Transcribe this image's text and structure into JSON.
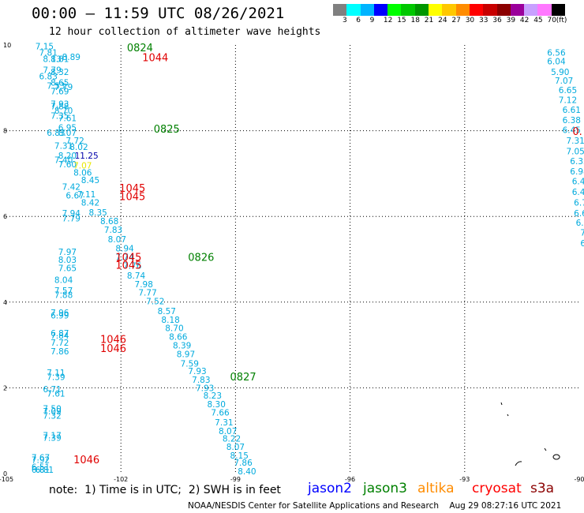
{
  "header": {
    "title": "00:00 – 11:59 UTC 08/26/2021",
    "subtitle": "12 hour collection of altimeter wave heights"
  },
  "legend": {
    "colors": [
      "#808080",
      "#00ffff",
      "#00b4ff",
      "#0000ff",
      "#00ff00",
      "#00c800",
      "#009600",
      "#ffff00",
      "#ffc800",
      "#ff8c00",
      "#ff0000",
      "#c80000",
      "#8b0000",
      "#9b009b",
      "#c8a0ff",
      "#ff78ff",
      "#000000"
    ],
    "labels": [
      "3",
      "6",
      "9",
      "12",
      "15",
      "18",
      "21",
      "24",
      "27",
      "30",
      "33",
      "36",
      "39",
      "42",
      "45",
      "70",
      "(ft)"
    ]
  },
  "axes": {
    "x_ticks": [
      "-105",
      "-102",
      "-99",
      "-96",
      "-93",
      "-90"
    ],
    "y_ticks": [
      "10",
      "8",
      "6",
      "4",
      "2",
      "0"
    ]
  },
  "track_labels": [
    {
      "text": "0824",
      "color": "#008000",
      "lon": -101.5,
      "lat": 9.85
    },
    {
      "text": "1044",
      "color": "#e00000",
      "lon": -101.1,
      "lat": 9.62
    },
    {
      "text": "0825",
      "color": "#008000",
      "lon": -100.8,
      "lat": 7.96
    },
    {
      "text": "1045",
      "color": "#e00000",
      "lon": -101.7,
      "lat": 6.57
    },
    {
      "text": "1045",
      "color": "#e00000",
      "lon": -101.7,
      "lat": 6.38
    },
    {
      "text": "0826",
      "color": "#008000",
      "lon": -99.9,
      "lat": 4.96
    },
    {
      "text": "1045",
      "color": "#e00000",
      "lon": -101.8,
      "lat": 4.96
    },
    {
      "text": "1045",
      "color": "#e00000",
      "lon": -101.8,
      "lat": 4.78
    },
    {
      "text": "1046",
      "color": "#e00000",
      "lon": -102.2,
      "lat": 3.05
    },
    {
      "text": "1046",
      "color": "#e00000",
      "lon": -102.2,
      "lat": 2.84
    },
    {
      "text": "0827",
      "color": "#008000",
      "lon": -98.8,
      "lat": 2.17
    },
    {
      "text": "1046",
      "color": "#e00000",
      "lon": -102.9,
      "lat": 0.24
    },
    {
      "text": "0.",
      "color": "#e00000",
      "lon": -90.05,
      "lat": 7.9
    }
  ],
  "chart_data": {
    "type": "scatter",
    "title": "12 hour collection of altimeter wave heights",
    "xlim": [
      -105,
      -90
    ],
    "ylim": [
      0,
      10
    ],
    "series": [
      {
        "name": "jason3",
        "color": "#00aadd",
        "points": [
          [
            -104.0,
            9.9,
            "7.15"
          ],
          [
            -103.9,
            9.75,
            "7.81"
          ],
          [
            -103.3,
            9.65,
            "8.89"
          ],
          [
            -103.8,
            9.6,
            "8.13"
          ],
          [
            -103.6,
            9.6,
            "8.81"
          ],
          [
            -103.8,
            9.35,
            "7.79"
          ],
          [
            -103.6,
            9.3,
            "8.32"
          ],
          [
            -103.9,
            9.2,
            "6.83"
          ],
          [
            -103.6,
            9.05,
            "8.65"
          ],
          [
            -103.7,
            8.98,
            "7.53"
          ],
          [
            -103.5,
            8.95,
            "7.79"
          ],
          [
            -103.6,
            8.85,
            "7.69"
          ],
          [
            -103.6,
            8.55,
            "7.93"
          ],
          [
            -103.6,
            8.5,
            "7.88"
          ],
          [
            -103.5,
            8.4,
            "8.70"
          ],
          [
            -103.6,
            8.28,
            "7.35"
          ],
          [
            -103.4,
            8.22,
            "7.61"
          ],
          [
            -103.4,
            8.0,
            "6.95"
          ],
          [
            -103.7,
            7.88,
            "6.83"
          ],
          [
            -103.4,
            7.88,
            "8.07"
          ],
          [
            -103.2,
            7.7,
            "7.72"
          ],
          [
            -103.5,
            7.58,
            "7.31"
          ],
          [
            -103.1,
            7.55,
            "8.02"
          ],
          [
            -103.4,
            7.35,
            "8.20"
          ],
          [
            -103.5,
            7.25,
            "7.40"
          ],
          [
            -103.4,
            7.15,
            "7.60"
          ],
          [
            -103.0,
            6.95,
            "8.06"
          ],
          [
            -102.8,
            6.78,
            "8.45"
          ],
          [
            -103.3,
            6.62,
            "7.42"
          ],
          [
            -103.2,
            6.42,
            "6.67"
          ],
          [
            -102.9,
            6.45,
            "7.11"
          ],
          [
            -102.8,
            6.25,
            "8.42"
          ],
          [
            -103.3,
            6.0,
            "7.94"
          ],
          [
            -103.3,
            5.88,
            "7.79"
          ],
          [
            -102.6,
            6.02,
            "8.35"
          ],
          [
            -102.3,
            5.82,
            "8.68"
          ],
          [
            -102.2,
            5.62,
            "7.83"
          ],
          [
            -102.1,
            5.4,
            "8.07"
          ],
          [
            -101.9,
            5.18,
            "8.94"
          ],
          [
            -103.4,
            5.1,
            "7.97"
          ],
          [
            -101.9,
            4.98,
            "7.74"
          ],
          [
            -103.4,
            4.92,
            "8.03"
          ],
          [
            -101.7,
            4.78,
            "7.76"
          ],
          [
            -103.4,
            4.72,
            "7.65"
          ],
          [
            -101.6,
            4.55,
            "8.74"
          ],
          [
            -103.5,
            4.45,
            "8.04"
          ],
          [
            -101.4,
            4.35,
            "7.98"
          ],
          [
            -103.5,
            4.2,
            "7.57"
          ],
          [
            -101.3,
            4.15,
            "7.77"
          ],
          [
            -103.5,
            4.1,
            "7.88"
          ],
          [
            -101.1,
            3.95,
            "7.52"
          ],
          [
            -100.8,
            3.72,
            "8.57"
          ],
          [
            -103.6,
            3.68,
            "7.96"
          ],
          [
            -103.6,
            3.62,
            "6.99"
          ],
          [
            -100.7,
            3.52,
            "8.18"
          ],
          [
            -100.6,
            3.32,
            "8.70"
          ],
          [
            -103.6,
            3.2,
            "6.87"
          ],
          [
            -103.6,
            3.15,
            "7.84"
          ],
          [
            -100.5,
            3.12,
            "8.66"
          ],
          [
            -100.4,
            2.92,
            "8.39"
          ],
          [
            -103.6,
            2.98,
            "7.72"
          ],
          [
            -100.3,
            2.72,
            "8.97"
          ],
          [
            -103.6,
            2.78,
            "7.86"
          ],
          [
            -100.2,
            2.5,
            "7.59"
          ],
          [
            -100.0,
            2.32,
            "7.93"
          ],
          [
            -103.7,
            2.28,
            "7.11"
          ],
          [
            -103.7,
            2.18,
            "7.39"
          ],
          [
            -99.9,
            2.12,
            "7.83"
          ],
          [
            -99.8,
            1.92,
            "7.93"
          ],
          [
            -103.8,
            1.9,
            "6.71"
          ],
          [
            -103.7,
            1.8,
            "7.61"
          ],
          [
            -99.6,
            1.75,
            "8.23"
          ],
          [
            -99.5,
            1.55,
            "8.30"
          ],
          [
            -103.8,
            1.45,
            "7.50"
          ],
          [
            -103.8,
            1.38,
            "7.09"
          ],
          [
            -103.8,
            1.28,
            "7.32"
          ],
          [
            -99.4,
            1.35,
            "7.66"
          ],
          [
            -99.3,
            1.12,
            "7.31"
          ],
          [
            -99.2,
            0.92,
            "8.07"
          ],
          [
            -103.8,
            0.82,
            "7.17"
          ],
          [
            -103.8,
            0.76,
            "7.39"
          ],
          [
            -99.1,
            0.75,
            "8.22"
          ],
          [
            -99.0,
            0.55,
            "8.07"
          ],
          [
            -98.9,
            0.35,
            "8.15"
          ],
          [
            -104.1,
            0.3,
            "7.67"
          ],
          [
            -104.1,
            0.25,
            "7.92"
          ],
          [
            -98.8,
            0.18,
            "7.86"
          ],
          [
            -104.1,
            0.08,
            "6.51"
          ],
          [
            -104.1,
            0.02,
            "6.81"
          ],
          [
            -104.0,
            0.02,
            "6.81"
          ],
          [
            -98.7,
            -0.02,
            "8.40"
          ]
        ]
      },
      {
        "name": "jason2",
        "color": "#00aadd",
        "points": [
          [
            -90.6,
            9.75,
            "6.56"
          ],
          [
            -90.6,
            9.55,
            "6.04"
          ],
          [
            -90.5,
            9.3,
            "5.90"
          ],
          [
            -90.4,
            9.1,
            "7.07"
          ],
          [
            -90.3,
            8.88,
            "6.65"
          ],
          [
            -90.3,
            8.65,
            "7.12"
          ],
          [
            -90.2,
            8.42,
            "6.61"
          ],
          [
            -90.2,
            8.18,
            "6.38"
          ],
          [
            -90.2,
            7.95,
            "6.45"
          ],
          [
            -90.1,
            7.7,
            "7.31"
          ],
          [
            -90.1,
            7.45,
            "7.05"
          ],
          [
            -90.0,
            7.22,
            "6.33"
          ],
          [
            -90.0,
            6.98,
            "6.98"
          ],
          [
            -89.95,
            6.75,
            "6.47"
          ],
          [
            -89.95,
            6.5,
            "6.43"
          ],
          [
            -89.9,
            6.25,
            "6.71"
          ],
          [
            -89.9,
            6.0,
            "6.69"
          ],
          [
            -89.85,
            5.78,
            "6.74"
          ],
          [
            -89.8,
            5.55,
            "7.2"
          ],
          [
            -89.8,
            5.3,
            "6.2"
          ],
          [
            -89.7,
            5.1,
            "7.1"
          ],
          [
            -89.7,
            4.85,
            "7.0"
          ],
          [
            -89.65,
            4.62,
            "6."
          ],
          [
            -89.6,
            4.4,
            "6."
          ],
          [
            -89.6,
            4.2,
            "6"
          ]
        ]
      },
      {
        "name": "altika",
        "color": "#e8e800",
        "points": [
          [
            -103.0,
            7.12,
            "7.07"
          ]
        ]
      },
      {
        "name": "cryosat",
        "color": "#0000aa",
        "points": [
          [
            -102.9,
            7.35,
            "11.25"
          ]
        ]
      }
    ]
  },
  "note": "note:  1) Time is in UTC;  2) SWH is in feet",
  "satellites": [
    {
      "name": "jason2",
      "color": "#0000ff"
    },
    {
      "name": "jason3",
      "color": "#008000"
    },
    {
      "name": "altika",
      "color": "#ff8c00"
    },
    {
      "name": "cryosat",
      "color": "#ff0000"
    },
    {
      "name": "s3a",
      "color": "#8b0000"
    }
  ],
  "credit": "NOAA/NESDIS Center for Satellite Applications and Research    Aug 29 08:27:16 UTC 2021"
}
